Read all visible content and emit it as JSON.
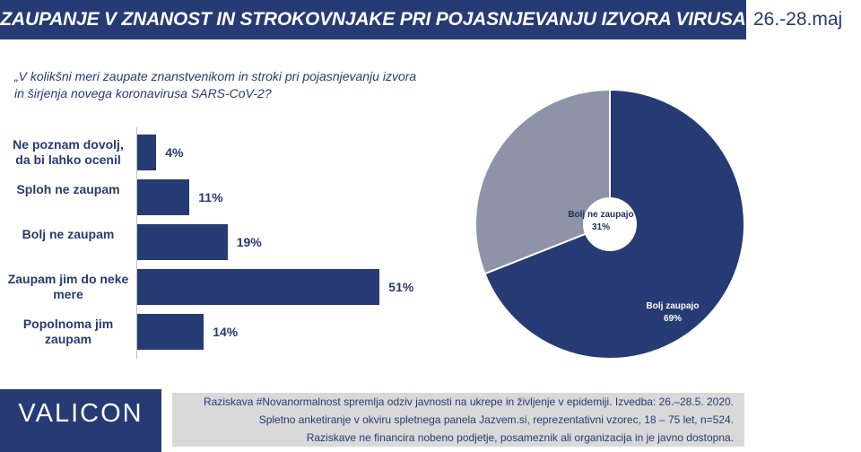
{
  "header": {
    "title": "ZAUPANJE V ZNANOST IN STROKOVNJAKE PRI POJASNJEVANJU IZVORA VIRUSA",
    "date": "26.-28.maj"
  },
  "question": "„V kolikšni meri zaupate znanstvenikom in stroki pri pojasnjevanju izvora in širjenja novega koronavirusa SARS-CoV-2?",
  "chart_data": [
    {
      "type": "bar",
      "orientation": "horizontal",
      "categories": [
        "Ne poznam dovolj, da bi lahko ocenil",
        "Sploh ne zaupam",
        "Bolj ne zaupam",
        "Zaupam jim do neke mere",
        "Popolnoma jim zaupam"
      ],
      "values": [
        4,
        11,
        19,
        51,
        14
      ],
      "value_labels": [
        "4%",
        "11%",
        "19%",
        "51%",
        "14%"
      ],
      "color": "#263a73"
    },
    {
      "type": "pie",
      "donut": true,
      "labels": [
        "Bolj zaupajo",
        "Bolj ne zaupajo"
      ],
      "values": [
        69,
        31
      ],
      "value_labels": [
        "69%",
        "31%"
      ],
      "colors": [
        "#263a73",
        "#8f93a8"
      ]
    }
  ],
  "footer": {
    "logo": "VALICON",
    "lines": [
      "Raziskava #Novanormalnost spremlja odziv javnosti na ukrepe in življenje v epidemiji. Izvedba: 26.–28.5. 2020.",
      "Spletno anketiranje v okviru spletnega panela Jazvem.si, reprezentativni vzorec, 18 – 75 let, n=524.",
      "Raziskave ne financira nobeno podjetje, posameznik ali organizacija in je javno dostopna."
    ]
  }
}
